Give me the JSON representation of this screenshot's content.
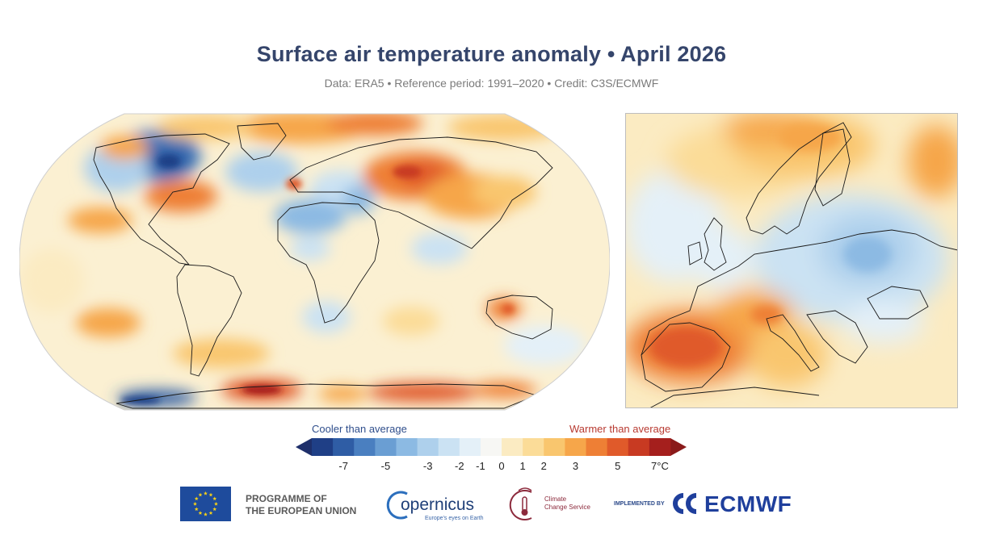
{
  "title": "Surface air temperature anomaly • April 2026",
  "subtitle": "Data: ERA5 • Reference period: 1991–2020 • Credit: C3S/ECMWF",
  "legend": {
    "cool_label": "Cooler than average",
    "warm_label": "Warmer than average",
    "ticks": [
      "-7",
      "-5",
      "-3",
      "-2",
      "-1",
      "0",
      "1",
      "2",
      "3",
      "5",
      "7°C"
    ],
    "colors": [
      "#1f3f86",
      "#2f5da5",
      "#4a7fc0",
      "#6a9ed3",
      "#8cbae3",
      "#aed0ec",
      "#cbe2f3",
      "#e4f0f8",
      "#f7f7f4",
      "#fbebc2",
      "#fbdc98",
      "#f9c66e",
      "#f6a64a",
      "#ee7f35",
      "#e05a2a",
      "#c83a22",
      "#a51f1d"
    ],
    "arrow_low_color": "#1e2f6a",
    "arrow_high_color": "#8a1a1a"
  },
  "logos": {
    "eu_line1": "PROGRAMME OF",
    "eu_line2": "THE EUROPEAN UNION",
    "copernicus_word": "opernicus",
    "copernicus_tagline": "Europe's eyes on Earth",
    "c3s_line1": "Climate",
    "c3s_line2": "Change Service",
    "implemented_by": "IMPLEMENTED BY",
    "ecmwf": "ECMWF"
  },
  "colors": {
    "title": "#35456b",
    "eu_blue": "#1e4b9c",
    "eu_star": "#f7d117"
  }
}
